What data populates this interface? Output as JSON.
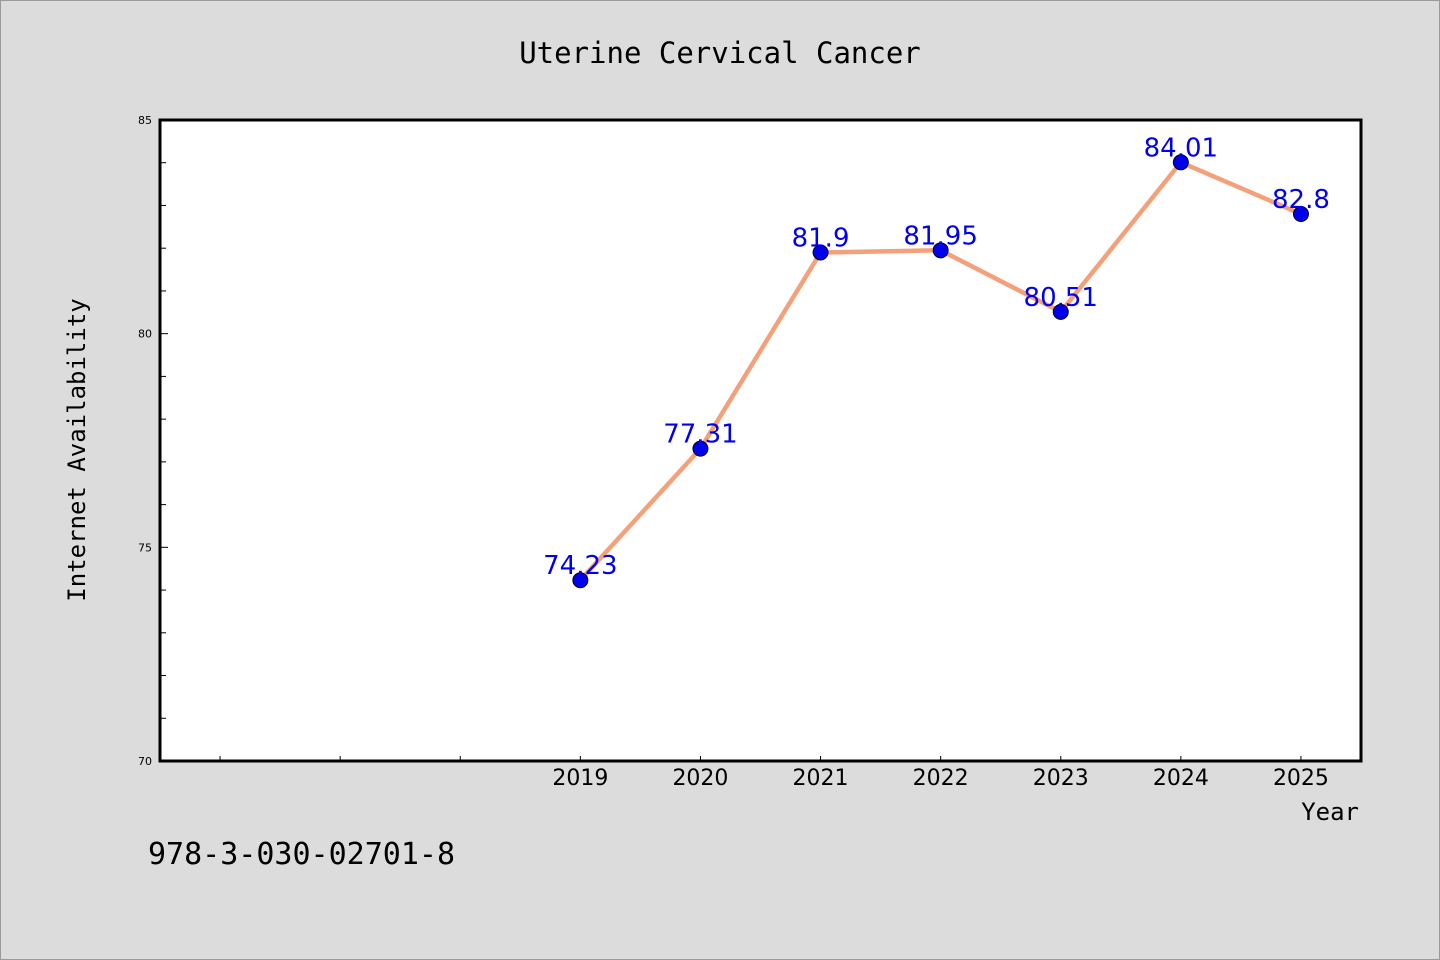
{
  "chart_data": {
    "type": "line",
    "title": "Uterine Cervical Cancer",
    "xlabel": "Year",
    "ylabel": "Internet Availability",
    "x": [
      2019,
      2020,
      2021,
      2022,
      2023,
      2024,
      2025
    ],
    "x_tick_labels": [
      "2019",
      "2020",
      "2021",
      "2022",
      "2023",
      "2024",
      "2025"
    ],
    "xlim": [
      2015.5,
      2025.5
    ],
    "ylim": [
      70,
      85
    ],
    "y_ticks": [
      70,
      75,
      80,
      85
    ],
    "y_tick_labels": [
      "70",
      "75",
      "80",
      "85"
    ],
    "series": [
      {
        "values": [
          74.23,
          77.31,
          81.9,
          81.95,
          80.51,
          84.01,
          82.8
        ],
        "data_labels": [
          "74.23",
          "77.31",
          "81.9",
          "81.95",
          "80.51",
          "84.01",
          "82.8"
        ],
        "line_color": "#f4a07a",
        "marker_color": "#0000ee"
      }
    ],
    "grid": false
  },
  "footer_text": "978-3-030-02701-8"
}
